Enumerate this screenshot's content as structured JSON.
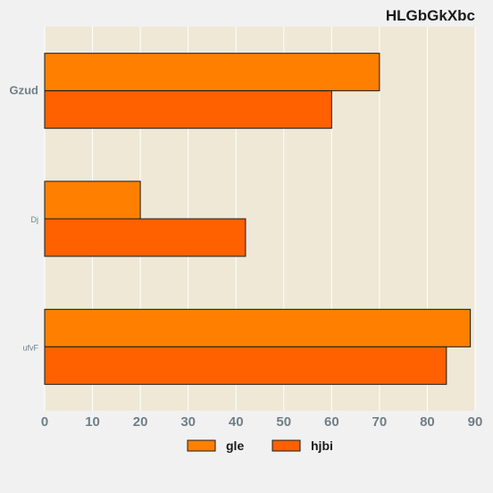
{
  "chart_data": {
    "type": "bar",
    "orientation": "horizontal",
    "title": "HLGbGkXbc",
    "xlabel": "",
    "ylabel": "",
    "categories": [
      "Gzud",
      "Dj",
      "ufvF"
    ],
    "series": [
      {
        "name": "gle",
        "color": "#ff8000",
        "values": [
          70,
          20,
          89
        ]
      },
      {
        "name": "hjbi",
        "color": "#ff6000",
        "values": [
          60,
          42,
          84
        ]
      }
    ],
    "xlim": [
      0,
      90
    ],
    "xticks": [
      "0",
      "10",
      "20",
      "30",
      "40",
      "50",
      "60",
      "70",
      "80",
      "90"
    ],
    "grid": true,
    "legend_position": "bottom",
    "plot_background": "#efe8d6"
  }
}
